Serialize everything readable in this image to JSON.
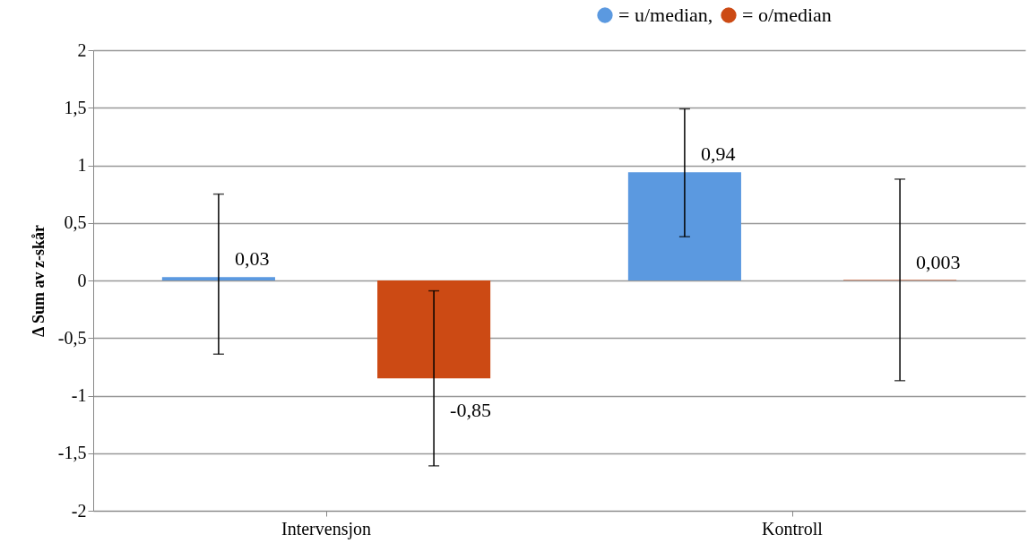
{
  "chart_data": {
    "type": "bar",
    "ylabel": "Δ Sum av z-skår",
    "categories": [
      "Intervensjon",
      "Kontroll"
    ],
    "series": [
      {
        "name": "= u/median,",
        "color": "#5b99e0",
        "values": [
          0.03,
          0.94
        ],
        "errors": [
          [
            -0.64,
            0.75
          ],
          [
            0.38,
            1.49
          ]
        ],
        "value_labels": [
          "0,03",
          "0,94"
        ]
      },
      {
        "name": "= o/median",
        "color": "#cc4a14",
        "values": [
          -0.85,
          0.003
        ],
        "errors": [
          [
            -1.61,
            -0.09
          ],
          [
            -0.87,
            0.88
          ]
        ],
        "value_labels": [
          "-0,85",
          "0,003"
        ]
      }
    ],
    "ylim": [
      -2,
      2
    ],
    "yticks": [
      -2,
      {
        "value": -1.5,
        "label": "-1,5"
      },
      -1,
      {
        "value": -0.5,
        "label": "-0,5"
      },
      0,
      {
        "value": 0.5,
        "label": "0,5"
      },
      1,
      {
        "value": 1.5,
        "label": "1,5"
      },
      2
    ],
    "grid": "y",
    "legend": "top right"
  }
}
